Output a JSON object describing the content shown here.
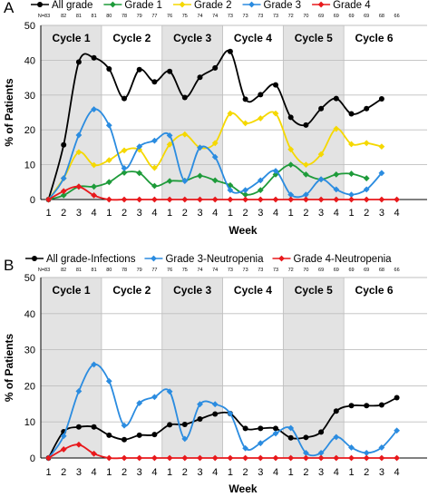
{
  "chart_data": [
    {
      "panel_label": "A",
      "type": "line",
      "x_tick_labels": [
        "1",
        "2",
        "3",
        "4",
        "1",
        "2",
        "3",
        "4",
        "1",
        "2",
        "3",
        "4",
        "1",
        "2",
        "3",
        "4",
        "1",
        "2",
        "3",
        "4",
        "1",
        "2",
        "3",
        "4"
      ],
      "n_labels": [
        "N=83",
        "82",
        "81",
        "81",
        "80",
        "78",
        "79",
        "77",
        "76",
        "75",
        "74",
        "74",
        "73",
        "73",
        "73",
        "73",
        "72",
        "70",
        "69",
        "69",
        "69",
        "69",
        "68",
        "66"
      ],
      "cycles": [
        "Cycle 1",
        "Cycle 2",
        "Cycle 3",
        "Cycle 4",
        "Cycle 5",
        "Cycle 6"
      ],
      "shaded_cycles": [
        0,
        2,
        4
      ],
      "xlabel": "Week",
      "ylabel": "% of Patients",
      "ylim": [
        0,
        50
      ],
      "yticks": [
        0,
        10,
        20,
        30,
        40,
        50
      ],
      "legend_position": "top",
      "series": [
        {
          "name": "All grade",
          "color": "#000000",
          "values": [
            0,
            15.7,
            39.5,
            40.7,
            37.5,
            29.0,
            37.3,
            33.8,
            36.8,
            29.3,
            35.1,
            37.8,
            42.5,
            28.8,
            30.1,
            32.9,
            23.6,
            21.4,
            26.1,
            29.0,
            24.6,
            26.1,
            28.9,
            null
          ]
        },
        {
          "name": "Grade 1",
          "color": "#1e9b3a",
          "values": [
            0,
            1.2,
            3.7,
            3.7,
            5.0,
            7.7,
            7.6,
            3.9,
            5.3,
            5.4,
            6.8,
            5.5,
            4.1,
            1.4,
            2.7,
            7.2,
            10.0,
            7.2,
            5.8,
            7.2,
            7.4,
            6.1,
            null,
            null
          ]
        },
        {
          "name": "Grade 2",
          "color": "#f5d800",
          "values": [
            0,
            6.1,
            13.6,
            9.9,
            11.3,
            14.1,
            14.3,
            9.1,
            15.8,
            18.7,
            14.9,
            16.2,
            24.7,
            21.9,
            23.3,
            24.7,
            14.4,
            10.0,
            13.0,
            20.3,
            15.9,
            16.2,
            15.2,
            null
          ]
        },
        {
          "name": "Grade 3",
          "color": "#2b8ce0",
          "values": [
            0,
            6.1,
            18.5,
            25.9,
            21.3,
            9.0,
            15.2,
            16.9,
            18.4,
            5.3,
            14.9,
            12.2,
            2.7,
            2.7,
            5.5,
            8.2,
            1.4,
            1.4,
            5.8,
            2.9,
            1.4,
            2.9,
            7.6,
            null
          ]
        },
        {
          "name": "Grade 4",
          "color": "#e8191c",
          "values": [
            0,
            2.4,
            3.7,
            1.2,
            0,
            0,
            0,
            0,
            0,
            0,
            0,
            0,
            0,
            0,
            0,
            0,
            0,
            0,
            0,
            0,
            0,
            0,
            0,
            0
          ]
        }
      ]
    },
    {
      "panel_label": "B",
      "type": "line",
      "x_tick_labels": [
        "1",
        "2",
        "3",
        "4",
        "1",
        "2",
        "3",
        "4",
        "1",
        "2",
        "3",
        "4",
        "1",
        "2",
        "3",
        "4",
        "1",
        "2",
        "3",
        "4",
        "1",
        "2",
        "3",
        "4"
      ],
      "n_labels": [
        "N=83",
        "82",
        "81",
        "81",
        "80",
        "78",
        "79",
        "77",
        "76",
        "75",
        "74",
        "74",
        "73",
        "73",
        "73",
        "73",
        "72",
        "70",
        "69",
        "69",
        "69",
        "69",
        "68",
        "66"
      ],
      "cycles": [
        "Cycle 1",
        "Cycle 2",
        "Cycle 3",
        "Cycle 4",
        "Cycle 5",
        "Cycle 6"
      ],
      "shaded_cycles": [
        0,
        2,
        4
      ],
      "xlabel": "Week",
      "ylabel": "% of Patients",
      "ylim": [
        0,
        50
      ],
      "yticks": [
        0,
        10,
        20,
        30,
        40,
        50
      ],
      "legend_position": "top",
      "series": [
        {
          "name": "All grade-Infections",
          "color": "#000000",
          "values": [
            0,
            7.3,
            8.6,
            8.6,
            6.3,
            5.1,
            6.3,
            6.5,
            9.2,
            9.3,
            10.8,
            12.2,
            12.3,
            8.2,
            8.2,
            8.2,
            5.6,
            5.7,
            7.2,
            13.0,
            14.5,
            14.5,
            14.7,
            16.7
          ]
        },
        {
          "name": "Grade 3-Neutropenia",
          "color": "#2b8ce0",
          "values": [
            0,
            6.1,
            18.5,
            25.9,
            21.3,
            9.0,
            15.2,
            16.9,
            18.4,
            5.3,
            14.9,
            14.9,
            12.3,
            2.7,
            4.1,
            6.8,
            8.3,
            1.4,
            1.4,
            5.8,
            2.9,
            1.4,
            2.9,
            7.6
          ]
        },
        {
          "name": "Grade 4-Neutropenia",
          "color": "#e8191c",
          "values": [
            0,
            2.4,
            3.7,
            1.2,
            0,
            0,
            0,
            0,
            0,
            0,
            0,
            0,
            0,
            0,
            0,
            0,
            0,
            0,
            0,
            0,
            0,
            0,
            0,
            0
          ]
        }
      ]
    }
  ]
}
